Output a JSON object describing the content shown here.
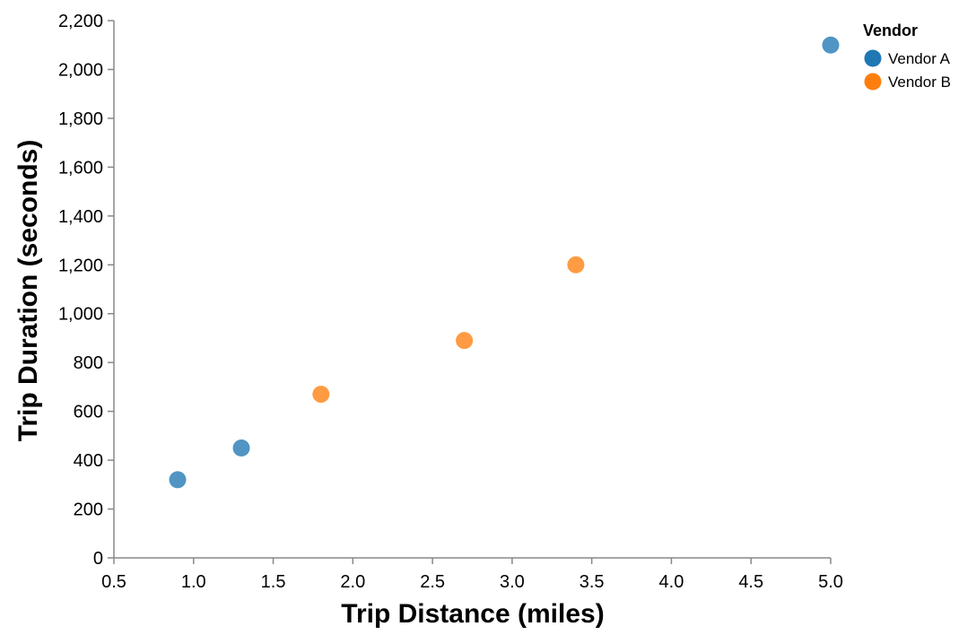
{
  "chart_data": {
    "type": "scatter",
    "xlabel": "Trip Distance (miles)",
    "ylabel": "Trip Duration (seconds)",
    "xlim": [
      0.5,
      5.0
    ],
    "ylim": [
      0,
      2200
    ],
    "x_ticks": [
      0.5,
      1.0,
      1.5,
      2.0,
      2.5,
      3.0,
      3.5,
      4.0,
      4.5,
      5.0
    ],
    "x_tick_labels": [
      "0.5",
      "1.0",
      "1.5",
      "2.0",
      "2.5",
      "3.0",
      "3.5",
      "4.0",
      "4.5",
      "5.0"
    ],
    "y_ticks": [
      0,
      200,
      400,
      600,
      800,
      1000,
      1200,
      1400,
      1600,
      1800,
      2000,
      2200
    ],
    "y_tick_labels": [
      "0",
      "200",
      "400",
      "600",
      "800",
      "1,000",
      "1,200",
      "1,400",
      "1,600",
      "1,800",
      "2,000",
      "2,200"
    ],
    "grid": false,
    "legend": {
      "title": "Vendor",
      "placement": "top-right"
    },
    "series": [
      {
        "name": "Vendor A",
        "color": "#1f77b4",
        "points": [
          {
            "x": 0.9,
            "y": 320
          },
          {
            "x": 1.3,
            "y": 450
          },
          {
            "x": 5.0,
            "y": 2100
          }
        ]
      },
      {
        "name": "Vendor B",
        "color": "#ff7f0e",
        "points": [
          {
            "x": 1.8,
            "y": 670
          },
          {
            "x": 2.7,
            "y": 890
          },
          {
            "x": 3.4,
            "y": 1200
          }
        ]
      }
    ]
  }
}
